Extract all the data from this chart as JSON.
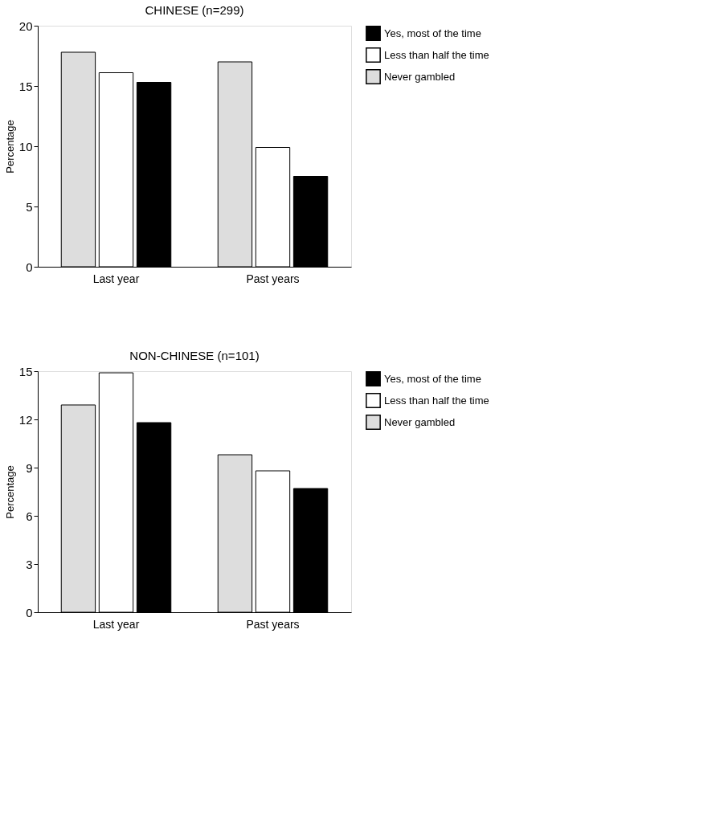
{
  "chart_data": [
    {
      "type": "bar",
      "title": "CHINESE (n=299)",
      "ylabel": "Percentage",
      "categories": [
        "Last year",
        "Past years"
      ],
      "ylim": [
        0,
        20
      ],
      "yticks": [
        0,
        5,
        10,
        15,
        20
      ],
      "grid": false,
      "legend": "right",
      "series": [
        {
          "name": "Never gambled",
          "color": "#dddddd",
          "values": [
            17.8,
            17.0
          ]
        },
        {
          "name": "Less than half the time",
          "color": "#ffffff",
          "values": [
            16.1,
            9.9
          ]
        },
        {
          "name": "Yes, most of the time",
          "color": "#000000",
          "values": [
            15.3,
            7.5
          ]
        }
      ]
    },
    {
      "type": "bar",
      "title": "NON-CHINESE (n=101)",
      "ylabel": "Percentage",
      "categories": [
        "Last year",
        "Past years"
      ],
      "ylim": [
        0,
        15
      ],
      "yticks": [
        0,
        3,
        6,
        9,
        12,
        15
      ],
      "grid": false,
      "legend": "right",
      "series": [
        {
          "name": "Never gambled",
          "color": "#dddddd",
          "values": [
            12.9,
            9.8
          ]
        },
        {
          "name": "Less than half the time",
          "color": "#ffffff",
          "values": [
            14.9,
            8.8
          ]
        },
        {
          "name": "Yes, most of the time",
          "color": "#000000",
          "values": [
            11.8,
            7.7
          ]
        }
      ]
    }
  ]
}
